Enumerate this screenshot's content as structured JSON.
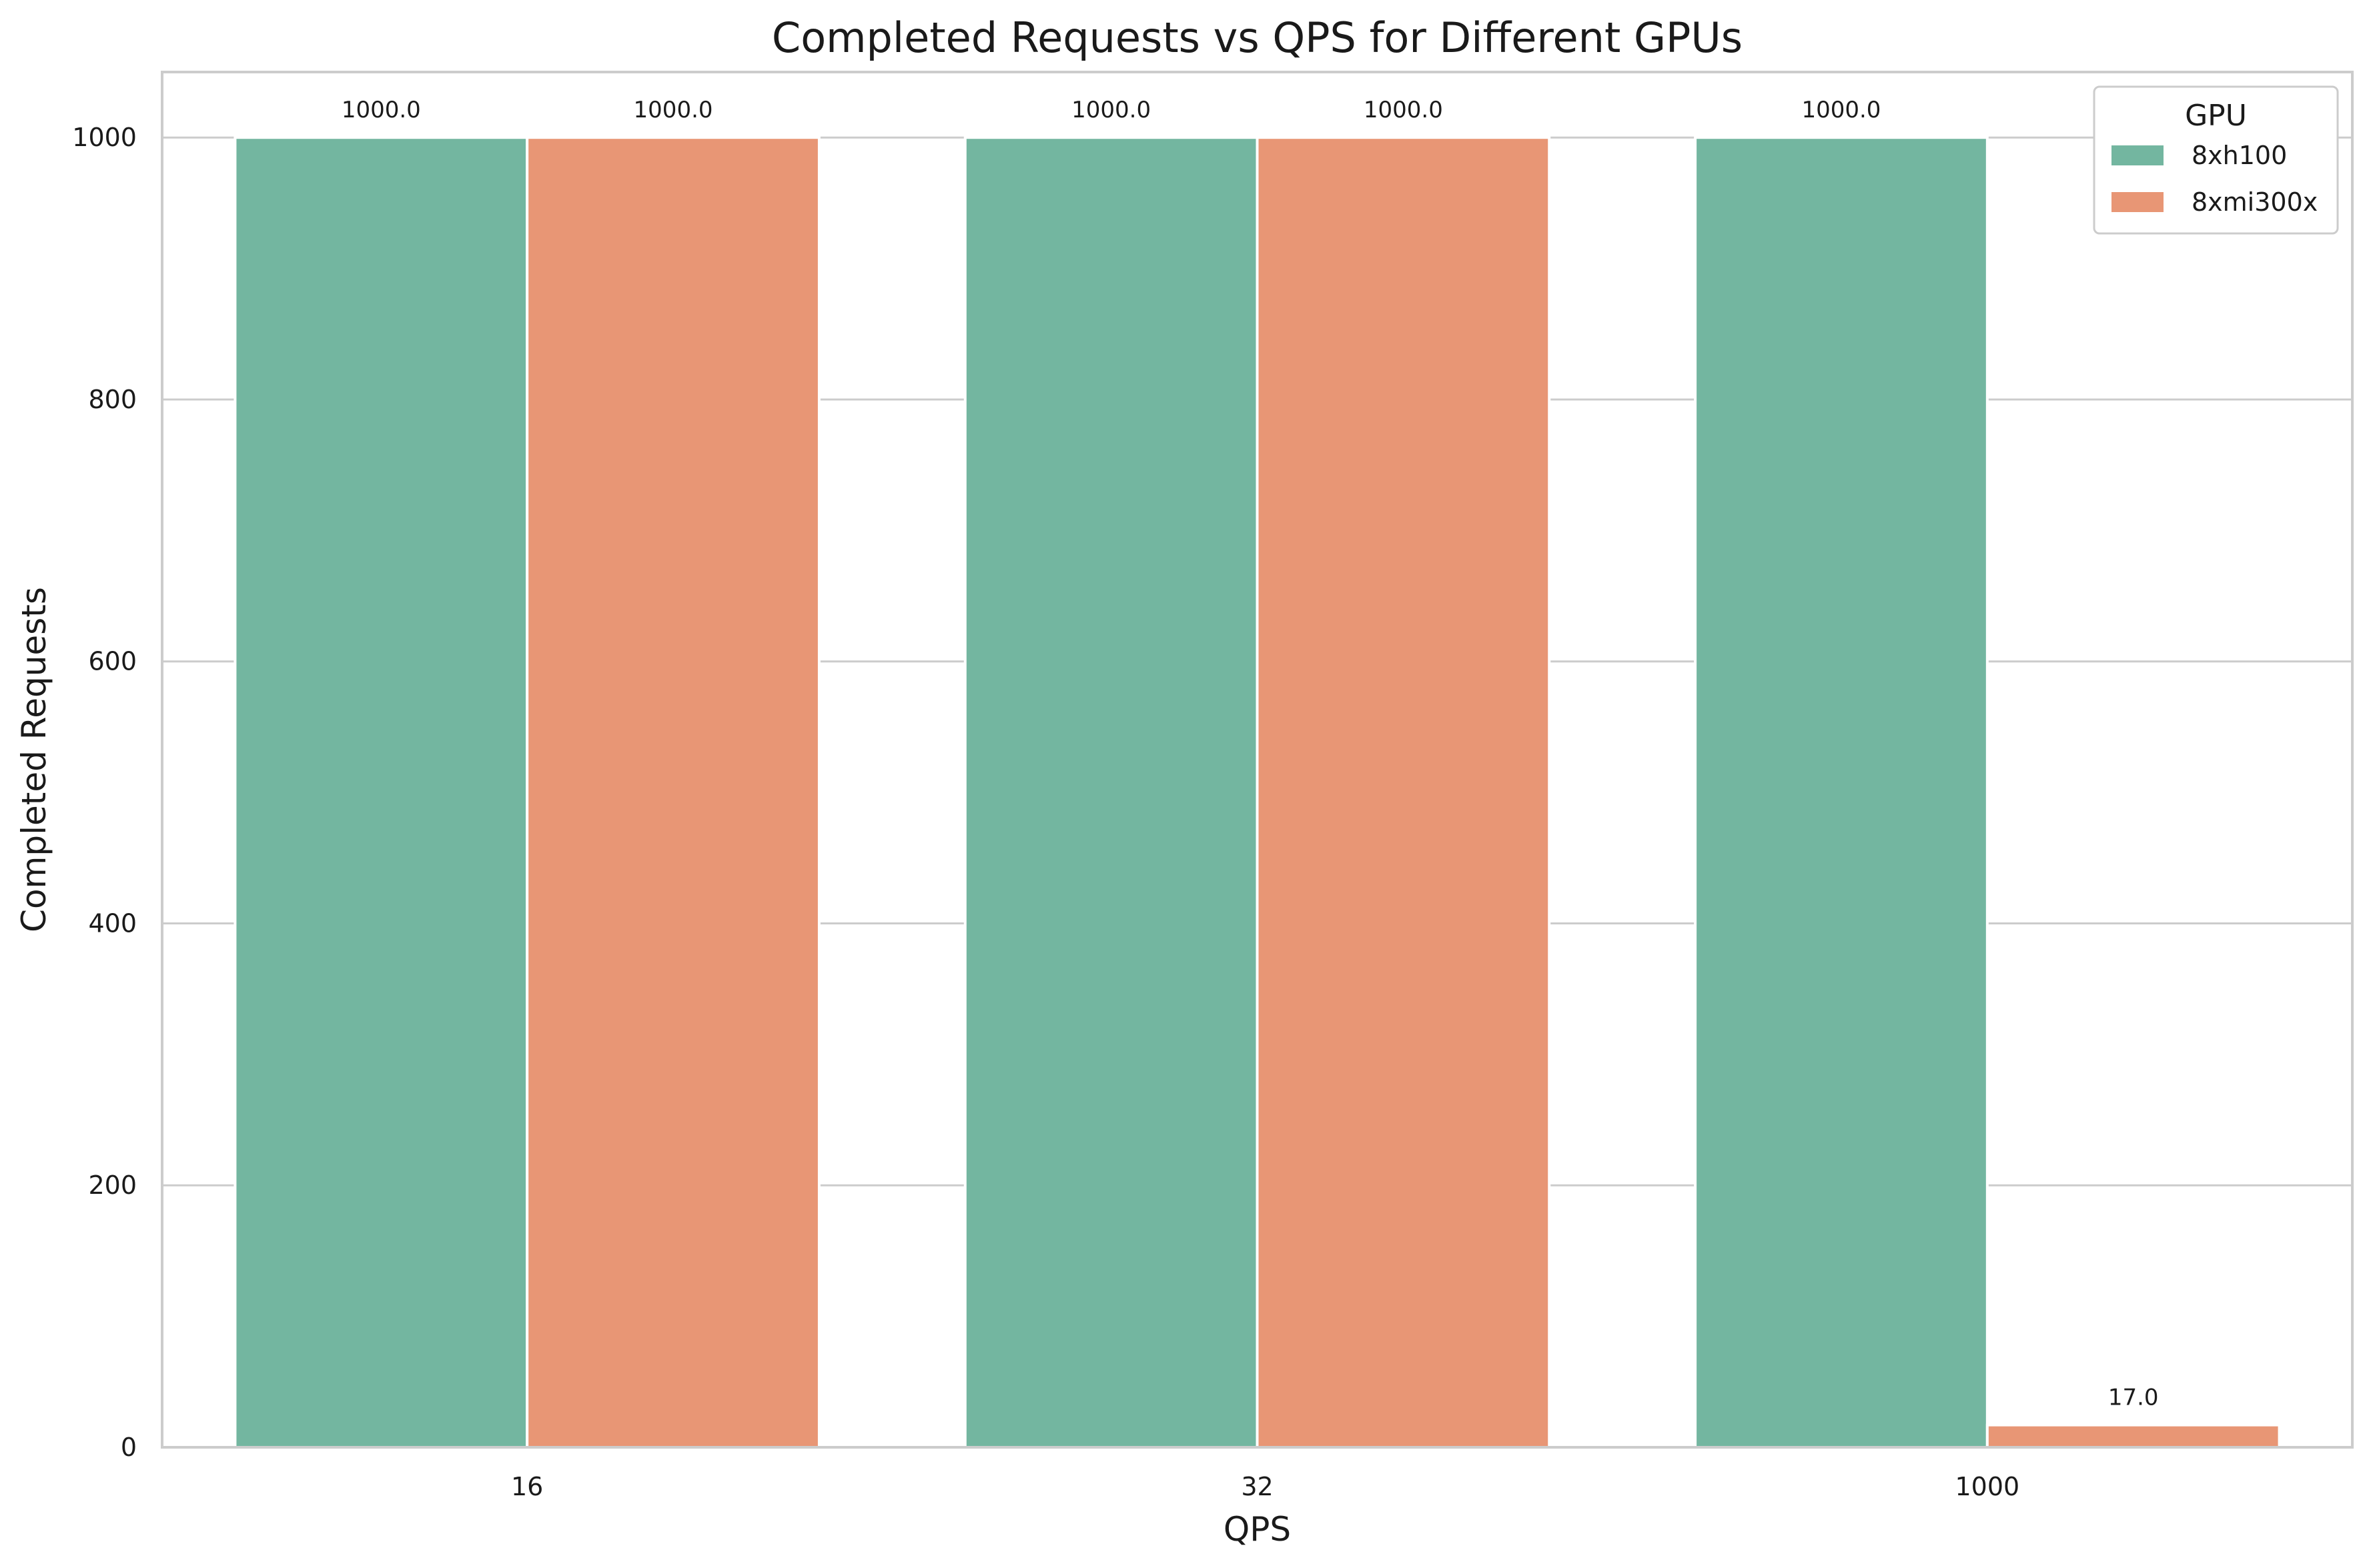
{
  "chart_data": {
    "type": "bar",
    "title": "Completed Requests vs QPS for Different GPUs",
    "xlabel": "QPS",
    "ylabel": "Completed Requests",
    "categories": [
      "16",
      "32",
      "1000"
    ],
    "series": [
      {
        "name": "8xh100",
        "values": [
          1000,
          1000,
          1000
        ],
        "labels": [
          "1000.0",
          "1000.0",
          "1000.0"
        ],
        "color": "#73b6a0"
      },
      {
        "name": "8xmi300x",
        "values": [
          1000,
          1000,
          17
        ],
        "labels": [
          "1000.0",
          "1000.0",
          "17.0"
        ],
        "color": "#e89675"
      }
    ],
    "ylim": [
      0,
      1050
    ],
    "yticks": [
      0,
      200,
      400,
      600,
      800,
      1000
    ],
    "grid": "horizontal",
    "legend": {
      "title": "GPU",
      "placement": "top-right"
    }
  }
}
